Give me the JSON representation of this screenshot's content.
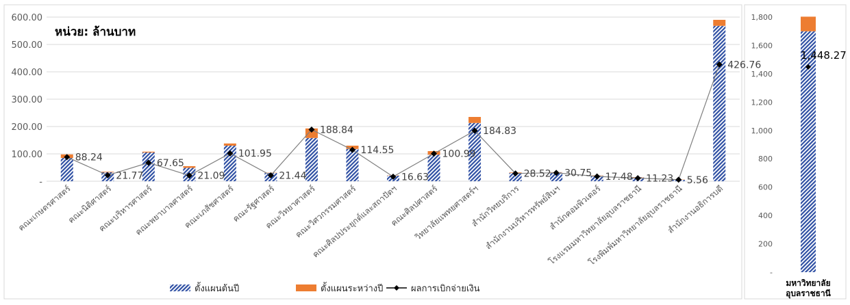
{
  "unit_note": "หน่วย: ล้านบาท",
  "legend": [
    {
      "label": "ตั้งแผนต้นปี",
      "swatch": "hatch"
    },
    {
      "label": "ตั้งแผนระหว่างปี",
      "swatch": "solid"
    },
    {
      "label": "ผลการเบิกจ่ายเงิน",
      "swatch": "line"
    }
  ],
  "colors": {
    "plan_start": "#2E4FA3",
    "plan_mid": "#ED7D31",
    "disbursed": "#000000",
    "grid": "#d9d9d9",
    "axis_text": "#595959"
  },
  "chart_data": [
    {
      "type": "bar",
      "stacked": true,
      "grid": true,
      "legend_position": "bottom",
      "ylim": [
        0,
        600
      ],
      "ytick_labels": [
        "-",
        "100.00",
        "200.00",
        "300.00",
        "400.00",
        "500.00",
        "600.00"
      ],
      "categories": [
        "คณะเกษตรศาสตร์",
        "คณะนิติศาสตร์",
        "คณะบริหารศาสตร์",
        "คณะพยาบาลศาสตร์",
        "คณะเภสัชศาสตร์",
        "คณะรัฐศาสตร์",
        "คณะวิทยาศาสตร์",
        "คณะวิศวกรรมศาสตร์",
        "คณะศิลปประยุกต์และสถาปัตฯ",
        "คณะศิลปศาสตร์",
        "วิทยาลัยแพทยศาสตร์ฯ",
        "สำนักวิทยบริการ",
        "สำนักงานบริหารทรัพย์สินฯ",
        "สำนักคอมพิวเตอร์",
        "โรงแรมมหาวิทยาลัยอุบลราชธานี",
        "โรงพิมพ์มหาวิทยาลัยอุบลราชธานี",
        "สำนักงานอธิการบดี"
      ],
      "series": [
        {
          "name": "ตั้งแผนต้นปี",
          "kind": "bar",
          "values": [
            85,
            33,
            105,
            49,
            130,
            30,
            158,
            118,
            20,
            97,
            213,
            30,
            32,
            20,
            14,
            5,
            568
          ]
        },
        {
          "name": "ตั้งแผนระหว่างปี",
          "kind": "bar",
          "values": [
            13,
            2,
            3,
            6,
            8,
            1,
            35,
            12,
            1,
            13,
            22,
            2,
            1,
            1,
            1,
            1,
            22
          ]
        },
        {
          "name": "ผลการเบิกจ่ายเงิน",
          "kind": "line",
          "values": [
            88.24,
            21.77,
            67.65,
            21.09,
            101.95,
            21.44,
            188.84,
            114.55,
            16.63,
            100.99,
            184.83,
            28.52,
            30.75,
            17.48,
            11.23,
            5.56,
            426.76
          ],
          "labels": [
            "88.24",
            "21.77",
            "67.65",
            "21.09",
            "101.95",
            "21.44",
            "188.84",
            "114.55",
            "16.63",
            "100.99",
            "184.83",
            "28.52",
            "30.75",
            "17.48",
            "11.23",
            "5.56",
            "426.76"
          ]
        }
      ]
    },
    {
      "type": "bar",
      "stacked": true,
      "grid": false,
      "ylim": [
        0,
        1800
      ],
      "ytick_labels": [
        "-",
        "200",
        "400",
        "600",
        "800",
        "1,000",
        "1,200",
        "1,400",
        "1,600",
        "1,800"
      ],
      "categories": [
        "มหาวิทยาลัย อุบลราชธานี"
      ],
      "category_lines": [
        "มหาวิทยาลัย",
        "อุบลราชธานี"
      ],
      "series": [
        {
          "name": "ตั้งแผนต้นปี",
          "kind": "bar",
          "values": [
            1700
          ]
        },
        {
          "name": "ตั้งแผนระหว่างปี",
          "kind": "bar",
          "values": [
            103
          ]
        },
        {
          "name": "ผลการเบิกจ่ายเงิน",
          "kind": "line",
          "values": [
            1448.27
          ],
          "labels": [
            "1,448.27"
          ]
        }
      ]
    }
  ]
}
